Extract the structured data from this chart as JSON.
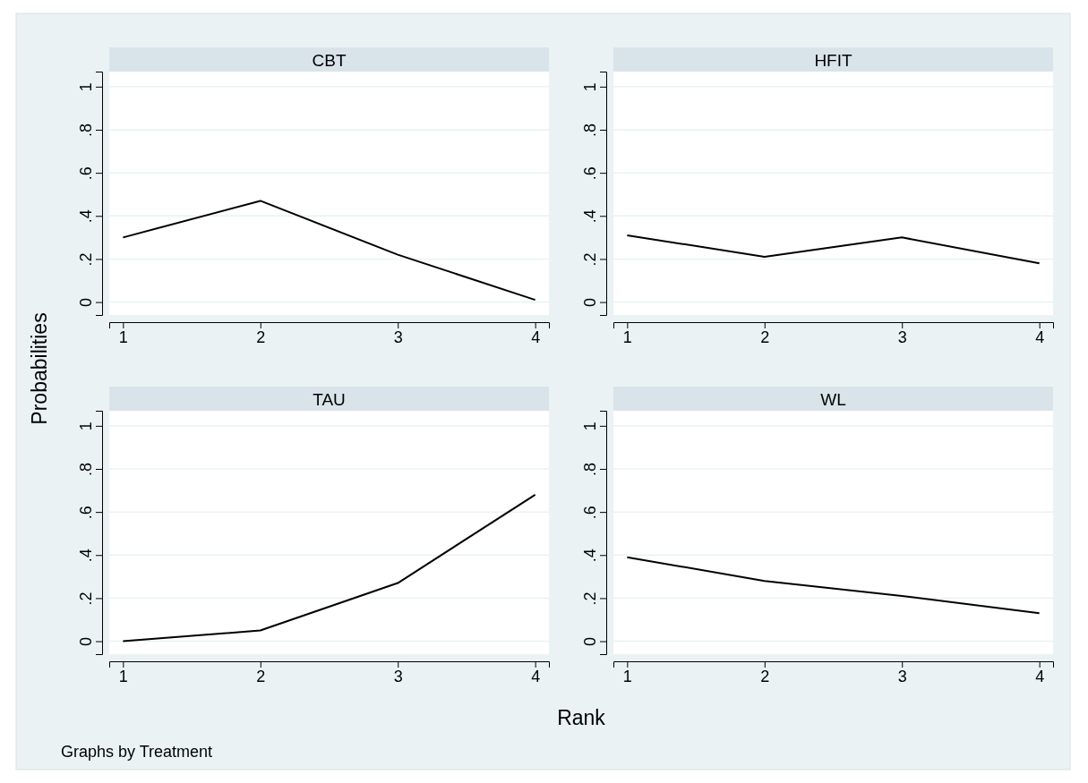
{
  "chart_data": [
    {
      "type": "line",
      "title": "CBT",
      "ylabel": "Probabilities",
      "x": [
        1,
        2,
        3,
        4
      ],
      "series": [
        {
          "color": "#000000",
          "values": [
            0.3,
            0.47,
            0.22,
            0.01
          ]
        }
      ],
      "xlim": [
        0.9,
        4.1
      ],
      "ylim": [
        -0.06,
        1.07
      ],
      "xticks": [
        1,
        2,
        3,
        4
      ],
      "yticks": [
        {
          "value": 0,
          "label": "0"
        },
        {
          "value": 0.2,
          "label": ".2"
        },
        {
          "value": 0.4,
          "label": ".4"
        },
        {
          "value": 0.6,
          "label": ".6"
        },
        {
          "value": 0.8,
          "label": ".8"
        },
        {
          "value": 1,
          "label": "1"
        }
      ],
      "grid": "y",
      "marker": "none",
      "line_style": "solid"
    },
    {
      "type": "line",
      "title": "HFIT",
      "x": [
        1,
        2,
        3,
        4
      ],
      "series": [
        {
          "color": "#000000",
          "values": [
            0.31,
            0.21,
            0.3,
            0.18
          ]
        }
      ],
      "xlim": [
        0.9,
        4.1
      ],
      "ylim": [
        -0.06,
        1.07
      ],
      "xticks": [
        1,
        2,
        3,
        4
      ],
      "yticks": [
        {
          "value": 0,
          "label": "0"
        },
        {
          "value": 0.2,
          "label": ".2"
        },
        {
          "value": 0.4,
          "label": ".4"
        },
        {
          "value": 0.6,
          "label": ".6"
        },
        {
          "value": 0.8,
          "label": ".8"
        },
        {
          "value": 1,
          "label": "1"
        }
      ],
      "grid": "y",
      "marker": "none",
      "line_style": "solid"
    },
    {
      "type": "line",
      "title": "TAU",
      "xlabel": "Rank",
      "annotations": [
        "Graphs by Treatment"
      ],
      "x": [
        1,
        2,
        3,
        4
      ],
      "series": [
        {
          "color": "#000000",
          "values": [
            0.0,
            0.05,
            0.27,
            0.68
          ]
        }
      ],
      "xlim": [
        0.9,
        4.1
      ],
      "ylim": [
        -0.06,
        1.07
      ],
      "xticks": [
        1,
        2,
        3,
        4
      ],
      "yticks": [
        {
          "value": 0,
          "label": "0"
        },
        {
          "value": 0.2,
          "label": ".2"
        },
        {
          "value": 0.4,
          "label": ".4"
        },
        {
          "value": 0.6,
          "label": ".6"
        },
        {
          "value": 0.8,
          "label": ".8"
        },
        {
          "value": 1,
          "label": "1"
        }
      ],
      "grid": "y",
      "marker": "none",
      "line_style": "solid"
    },
    {
      "type": "line",
      "title": "WL",
      "x": [
        1,
        2,
        3,
        4
      ],
      "series": [
        {
          "color": "#000000",
          "values": [
            0.39,
            0.28,
            0.21,
            0.13
          ]
        }
      ],
      "xlim": [
        0.9,
        4.1
      ],
      "ylim": [
        -0.06,
        1.07
      ],
      "xticks": [
        1,
        2,
        3,
        4
      ],
      "yticks": [
        {
          "value": 0,
          "label": "0"
        },
        {
          "value": 0.2,
          "label": ".2"
        },
        {
          "value": 0.4,
          "label": ".4"
        },
        {
          "value": 0.6,
          "label": ".6"
        },
        {
          "value": 0.8,
          "label": ".8"
        },
        {
          "value": 1,
          "label": "1"
        }
      ],
      "grid": "y",
      "marker": "none",
      "line_style": "solid"
    }
  ]
}
